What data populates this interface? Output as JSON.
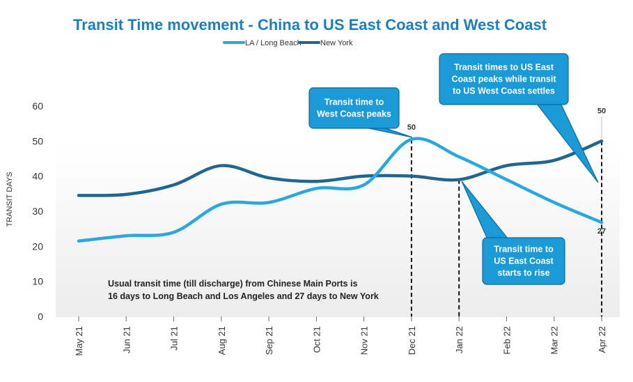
{
  "chart_data": {
    "type": "line",
    "title": "Transit Time movement - China to US East Coast and West Coast",
    "ylabel": "TRANSIT DAYS",
    "xlabel": "",
    "ylim": [
      0,
      60
    ],
    "yticks": [
      0,
      10,
      20,
      30,
      40,
      50,
      60
    ],
    "categories": [
      "May 21",
      "Jun 21",
      "Jul 21",
      "Aug 21",
      "Sep 21",
      "Oct 21",
      "Nov 21",
      "Dec 21",
      "Jan 22",
      "Feb 22",
      "Mar 22",
      "Apr 22"
    ],
    "series": [
      {
        "name": "LA / Long Beach",
        "color": "#29a8e0",
        "values": [
          21.5,
          23,
          24,
          32,
          32.5,
          36.5,
          37.5,
          50.5,
          45.5,
          39,
          32.5,
          26.8
        ]
      },
      {
        "name": "New York",
        "color": "#1f6690",
        "values": [
          34.5,
          34.8,
          37.5,
          43,
          39.5,
          38.5,
          40,
          40,
          39,
          43,
          44.5,
          50
        ]
      }
    ],
    "legend_position": "top-center",
    "grid": false,
    "data_labels": [
      {
        "text": "50",
        "series": "LA / Long Beach",
        "category": "Dec 21"
      },
      {
        "text": "50",
        "series": "New York",
        "category": "Apr 22"
      },
      {
        "text": "27",
        "series": "LA / Long Beach",
        "category": "Apr 22"
      }
    ],
    "callouts": [
      {
        "lines": [
          "Transit time to",
          "West Coast peaks"
        ]
      },
      {
        "lines": [
          "Transit times to US East",
          "Coast peaks while transit",
          "to US West Coast settles"
        ]
      },
      {
        "lines": [
          "Transit time to",
          "US East Coast",
          "starts to rise"
        ]
      }
    ],
    "note": [
      "Usual transit time (till discharge) from Chinese Main Ports is",
      "16 days to Long Beach and Los Angeles and 27 days to New York"
    ],
    "colors": {
      "title": "#1c7fba",
      "callout_fill": "#1a9bd7",
      "callout_stroke": "#0f6a9c",
      "axis_text": "#333333"
    }
  }
}
